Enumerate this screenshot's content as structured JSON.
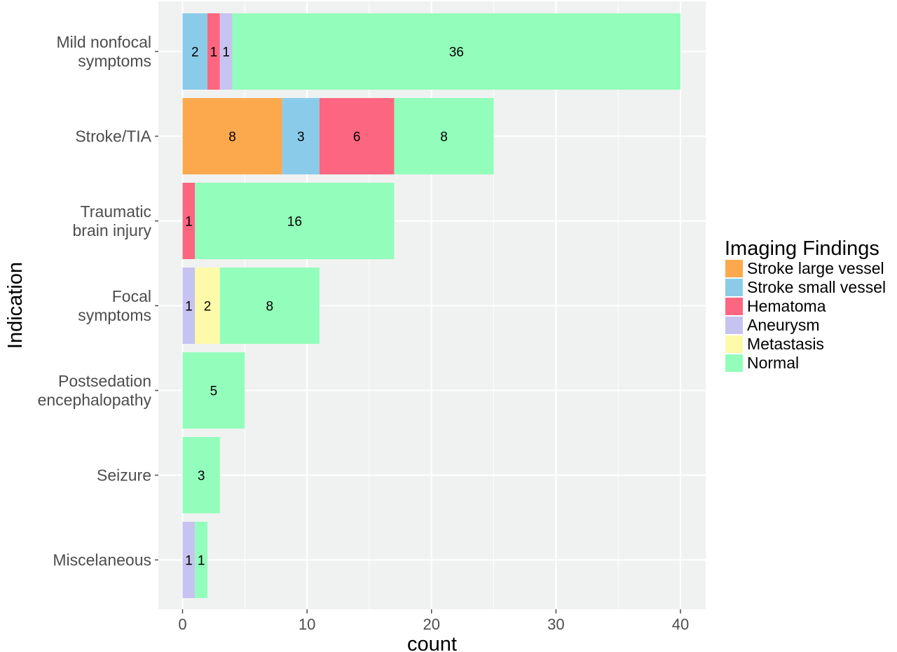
{
  "chart_data": {
    "type": "bar",
    "orientation": "horizontal",
    "stacked": true,
    "xlabel": "count",
    "ylabel": "Indication",
    "xlim": [
      0,
      42
    ],
    "xticks": [
      0,
      10,
      20,
      30,
      40
    ],
    "grid": true,
    "legend": {
      "title": "Imaging Findings",
      "position": "right"
    },
    "categories": [
      "Mild nonfocal\nsymptoms",
      "Stroke/TIA",
      "Traumatic\nbrain injury",
      "Focal\nsymptoms",
      "Postsedation\nencephalopathy",
      "Seizure",
      "Miscelaneous"
    ],
    "series": [
      {
        "name": "Stroke large vessel",
        "color": "#fca94e",
        "values": [
          0,
          8,
          0,
          0,
          0,
          0,
          0
        ]
      },
      {
        "name": "Stroke small vessel",
        "color": "#8bcbea",
        "values": [
          2,
          3,
          0,
          0,
          0,
          0,
          0
        ]
      },
      {
        "name": "Hematoma",
        "color": "#fd6680",
        "values": [
          1,
          6,
          1,
          0,
          0,
          0,
          0
        ]
      },
      {
        "name": "Aneurysm",
        "color": "#c6c3f1",
        "values": [
          1,
          0,
          0,
          1,
          0,
          0,
          1
        ]
      },
      {
        "name": "Metastasis",
        "color": "#fdfaa9",
        "values": [
          0,
          0,
          0,
          2,
          0,
          0,
          0
        ]
      },
      {
        "name": "Normal",
        "color": "#93fdbb",
        "values": [
          36,
          8,
          16,
          8,
          5,
          3,
          1
        ]
      }
    ],
    "colors": {
      "panel_background": "#eff2f1",
      "grid": "#ffffff",
      "tick": "#4d4d4d"
    }
  }
}
